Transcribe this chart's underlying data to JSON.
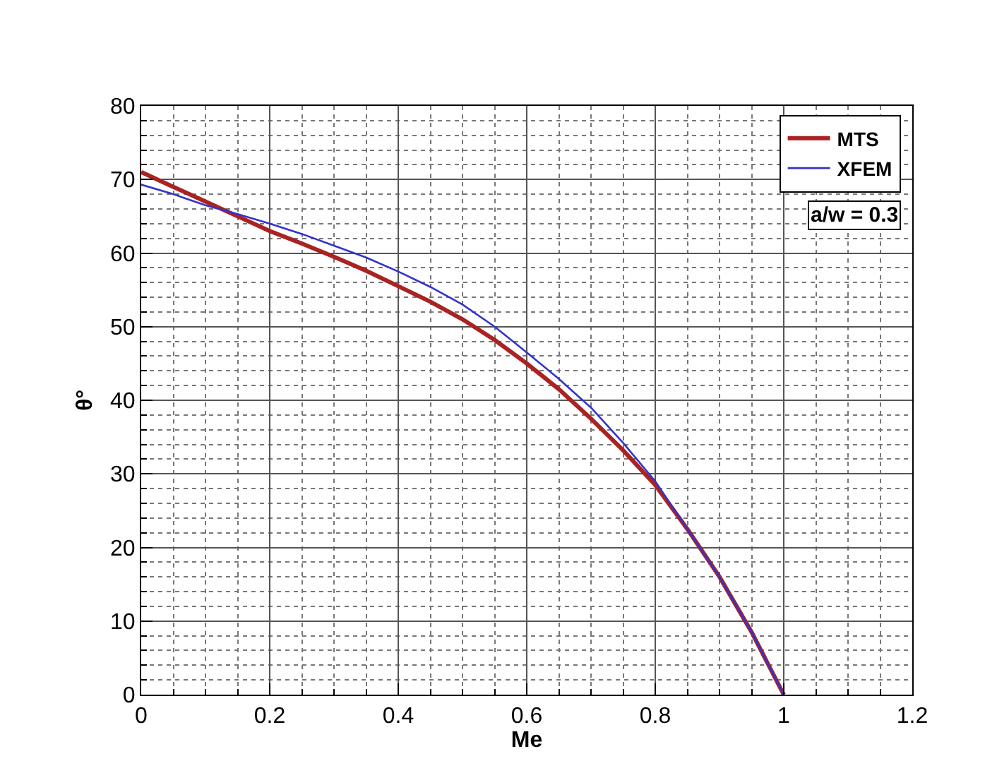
{
  "chart_data": {
    "type": "line",
    "xlabel": "Me",
    "ylabel": "θ°",
    "xlim": [
      0,
      1.2
    ],
    "xticks": [
      0,
      0.2,
      0.4,
      0.6,
      0.8,
      1,
      1.2
    ],
    "ylim": [
      0,
      80
    ],
    "yticks": [
      0,
      10,
      20,
      30,
      40,
      50,
      60,
      70,
      80
    ],
    "grid": true,
    "legend": "top right",
    "marker": "none",
    "line_style": "solid",
    "annotations": [
      "a/w = 0.3"
    ],
    "x": [
      0,
      0.05,
      0.1,
      0.15,
      0.2,
      0.25,
      0.3,
      0.35,
      0.4,
      0.45,
      0.5,
      0.55,
      0.6,
      0.65,
      0.7,
      0.75,
      0.8,
      0.85,
      0.9,
      0.95,
      1
    ],
    "series": [
      {
        "name": "MTS",
        "color": "#aa2222",
        "values": [
          71,
          69,
          67,
          65,
          63,
          61.3,
          59.5,
          57.6,
          55.5,
          53.4,
          51,
          48.2,
          45,
          41.5,
          37.5,
          33.2,
          28.5,
          22.5,
          16,
          8.5,
          0
        ]
      },
      {
        "name": "XFEM",
        "color": "#3333cc",
        "values": [
          69.3,
          68,
          66.5,
          65.3,
          64,
          62.6,
          61,
          59.4,
          57.5,
          55.4,
          53,
          50,
          46.5,
          42.9,
          39,
          34.2,
          29,
          22.5,
          16,
          8.5,
          0
        ]
      }
    ]
  }
}
